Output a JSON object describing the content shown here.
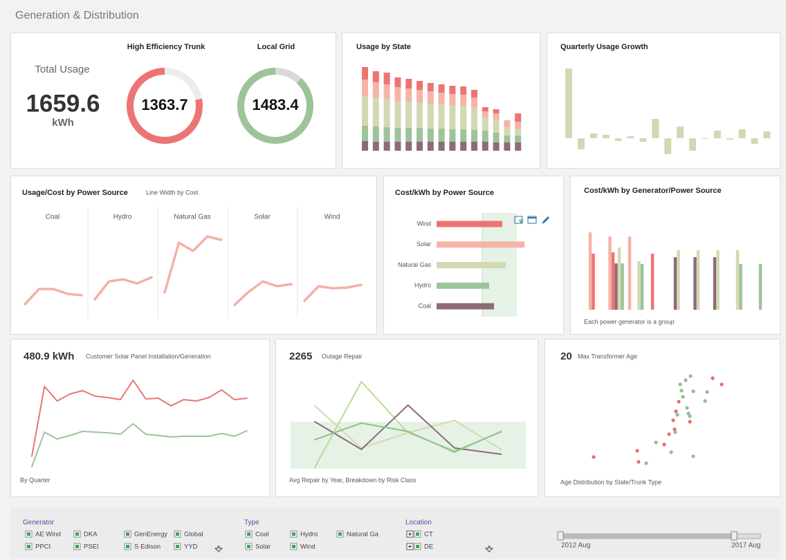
{
  "header": {
    "title": "Generation & Distribution"
  },
  "kpi": {
    "label": "Total Usage",
    "value": 1659.6,
    "unit": "kWh"
  },
  "chart_data": [
    {
      "type": "donut",
      "title": "High Efficiency Trunk",
      "value": 1363.7,
      "share": 78,
      "color": "#ec7473",
      "track_color": "#ececec"
    },
    {
      "type": "donut",
      "title": "Local Grid",
      "value": 1483.4,
      "share": 88,
      "color": "#9dc39a",
      "track_color": "#d9d9d9"
    },
    {
      "type": "bar",
      "title": "Usage by State",
      "stacked": true,
      "categories": [
        null,
        null,
        null,
        null,
        null,
        null,
        null,
        null,
        null,
        null,
        null,
        null,
        null,
        null,
        null
      ],
      "series": [
        {
          "color": "#8e6a7a",
          "values": [
            14,
            13,
            13,
            13,
            13,
            13,
            13,
            13,
            13,
            13,
            13,
            13,
            12,
            12,
            12
          ]
        },
        {
          "color": "#9dc39a",
          "values": [
            22,
            22,
            21,
            20,
            20,
            20,
            19,
            19,
            18,
            18,
            17,
            16,
            14,
            10,
            10
          ]
        },
        {
          "color": "#d4d8b2",
          "values": [
            43,
            42,
            41,
            39,
            38,
            37,
            36,
            35,
            35,
            34,
            33,
            20,
            19,
            12,
            10
          ]
        },
        {
          "color": "#f6b3a8",
          "values": [
            24,
            22,
            21,
            20,
            19,
            18,
            18,
            17,
            16,
            16,
            14,
            8,
            9,
            10,
            10
          ]
        },
        {
          "color": "#ec7473",
          "values": [
            18,
            16,
            17,
            14,
            14,
            13,
            12,
            12,
            12,
            12,
            11,
            6,
            6,
            0,
            12
          ]
        }
      ]
    },
    {
      "type": "bar",
      "title": "Quarterly Usage Growth",
      "color": "#d4d8b2",
      "categories": [
        null,
        null,
        null,
        null,
        null,
        null,
        null,
        null,
        null,
        null,
        null,
        null,
        null,
        null,
        null,
        null,
        null
      ],
      "values": [
        101,
        -16,
        7,
        5,
        -4,
        3,
        -5,
        28,
        -23,
        17,
        -18,
        -1,
        11,
        -2,
        13,
        -8,
        10
      ]
    },
    {
      "type": "line",
      "title": "Usage/Cost by Power Source",
      "subtitle": "Line Width by Cost",
      "color": "#f4b0a6",
      "panels": [
        {
          "name": "Coal",
          "values": [
            15,
            37,
            37,
            30,
            28
          ]
        },
        {
          "name": "Hydro",
          "values": [
            22,
            48,
            51,
            45,
            54
          ]
        },
        {
          "name": "Natural Gas",
          "values": [
            32,
            104,
            92,
            113,
            108
          ]
        },
        {
          "name": "Solar",
          "values": [
            14,
            33,
            48,
            41,
            44
          ]
        },
        {
          "name": "Wind",
          "values": [
            20,
            41,
            38,
            39,
            43
          ]
        }
      ]
    },
    {
      "type": "bar",
      "title": "Cost/kWh by Power Source",
      "horizontal": true,
      "categories": [
        "Wind",
        "Solar",
        "Natural Gas",
        "Hydro",
        "Coal"
      ],
      "values": [
        95,
        127,
        100,
        76,
        83
      ],
      "colors": [
        "#ec7473",
        "#f6b3a8",
        "#d4d8b2",
        "#9dc39a",
        "#8e6a7a"
      ]
    },
    {
      "type": "bar",
      "title": "Cost/kWh by Generator/Power Source",
      "note": "Each power generator is a group",
      "categories": [
        null,
        null,
        null,
        null,
        null,
        null,
        null,
        null,
        null
      ],
      "series": [
        {
          "color": "#f6b3a8",
          "values": [
            112,
            106,
            106,
            null,
            null,
            null,
            null,
            null,
            null
          ]
        },
        {
          "color": "#ec7473",
          "values": [
            81,
            83,
            null,
            81,
            null,
            null,
            null,
            null,
            null
          ]
        },
        {
          "color": "#8e6a7a",
          "values": [
            null,
            67,
            null,
            null,
            76,
            76,
            76,
            null,
            null
          ]
        },
        {
          "color": "#d4d8b2",
          "values": [
            null,
            90,
            70,
            null,
            86,
            86,
            86,
            86,
            null
          ]
        },
        {
          "color": "#9dc39a",
          "values": [
            null,
            67,
            66,
            null,
            null,
            null,
            null,
            66,
            66
          ]
        }
      ]
    },
    {
      "type": "line",
      "headline": "480.9 kWh",
      "subtitle": "Customer Solar Panel Installation/Generation",
      "note": "By Quarter",
      "series": [
        {
          "color": "#ec7473",
          "values": [
            60,
            161,
            140,
            150,
            155,
            147,
            145,
            142,
            170,
            143,
            144,
            133,
            142,
            140,
            145,
            156,
            142,
            144
          ]
        },
        {
          "color": "#9dc39a",
          "values": [
            45,
            95,
            85,
            90,
            96,
            95,
            94,
            92,
            107,
            92,
            90,
            88,
            89,
            89,
            89,
            93,
            89,
            97
          ]
        }
      ]
    },
    {
      "type": "line",
      "headline": 2265,
      "subtitle": "Outage Repair",
      "note": "Avg Repair by Year, Breakdown by Risk Class",
      "series": [
        {
          "color": "#b5dc98",
          "values": [
            24,
            148,
            74,
            48,
            75
          ]
        },
        {
          "color": "#d5d9b0",
          "values": [
            113,
            52,
            74,
            92,
            50
          ]
        },
        {
          "color": "#8e6a7a",
          "values": [
            90,
            50,
            114,
            52,
            43
          ]
        },
        {
          "color": "#8fc08c",
          "values": [
            64,
            88,
            76,
            46,
            76
          ]
        }
      ]
    },
    {
      "type": "scatter",
      "headline": 20,
      "subtitle": "Max Transformer Age",
      "note": "Age Distribution by State/Trunk Type",
      "series": [
        {
          "color": "#ec6a6a",
          "x": [
            58,
            121,
            123,
            160,
            167,
            173,
            177,
            175,
            181,
            197,
            230,
            243
          ],
          "values": [
            39,
            48,
            32,
            57,
            72,
            92,
            105,
            79,
            119,
            90,
            153,
            144
          ]
        },
        {
          "color": "#8fc08c",
          "x": [
            134,
            148,
            170,
            183,
            191,
            198,
            185,
            187,
            193,
            195,
            197,
            202,
            219,
            222,
            202,
            179,
            176
          ],
          "values": [
            30,
            60,
            46,
            144,
            150,
            156,
            135,
            126,
            110,
            102,
            98,
            40,
            120,
            133,
            134,
            100,
            75
          ]
        }
      ]
    }
  ],
  "filters": {
    "groups": [
      {
        "title": "Generator",
        "items": [
          "AE Wind",
          "DKA",
          "GenEnergy",
          "Global",
          "PPCI",
          "PSEI",
          "S Edison",
          "YYD"
        ]
      },
      {
        "title": "Type",
        "items": [
          "Coal",
          "Hydro",
          "Natural Ga",
          "Solar",
          "Wind"
        ]
      },
      {
        "title": "Location",
        "items": [
          "CT",
          "DE"
        ]
      }
    ],
    "slider": {
      "start": "2012 Aug",
      "end": "2017 Aug"
    }
  }
}
